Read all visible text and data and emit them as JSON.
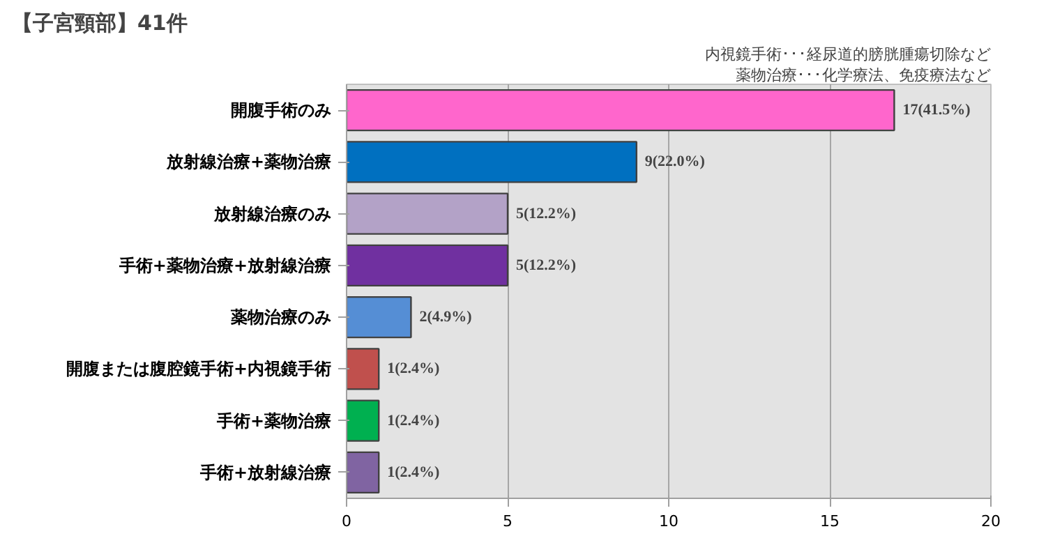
{
  "chart_data": {
    "type": "bar",
    "orientation": "horizontal",
    "title": "【子宮頸部】41件",
    "annotations": [
      "内視鏡手術･･･経尿道的膀胱腫瘍切除など",
      "薬物治療･･･化学療法、免疫療法など"
    ],
    "categories": [
      "開腹手術のみ",
      "放射線治療+薬物治療",
      "放射線治療のみ",
      "手術+薬物治療+放射線治療",
      "薬物治療のみ",
      "開腹または腹腔鏡手術+内視鏡手術",
      "手術+薬物治療",
      "手術+放射線治療"
    ],
    "values": [
      17,
      9,
      5,
      5,
      2,
      1,
      1,
      1
    ],
    "colors": [
      "#ff66cc",
      "#0070c0",
      "#b3a2c7",
      "#7030a0",
      "#558ed5",
      "#c0504d",
      "#00b050",
      "#8064a2"
    ],
    "value_labels": [
      "17(41.5%)",
      "9(22.0%)",
      "5(12.2%)",
      "5(12.2%)",
      "2(4.9%)",
      "1(2.4%)",
      "1(2.4%)",
      "1(2.4%)"
    ],
    "xlim": [
      0,
      20
    ],
    "xticks": [
      0,
      5,
      10,
      15,
      20
    ],
    "grid": "x"
  }
}
